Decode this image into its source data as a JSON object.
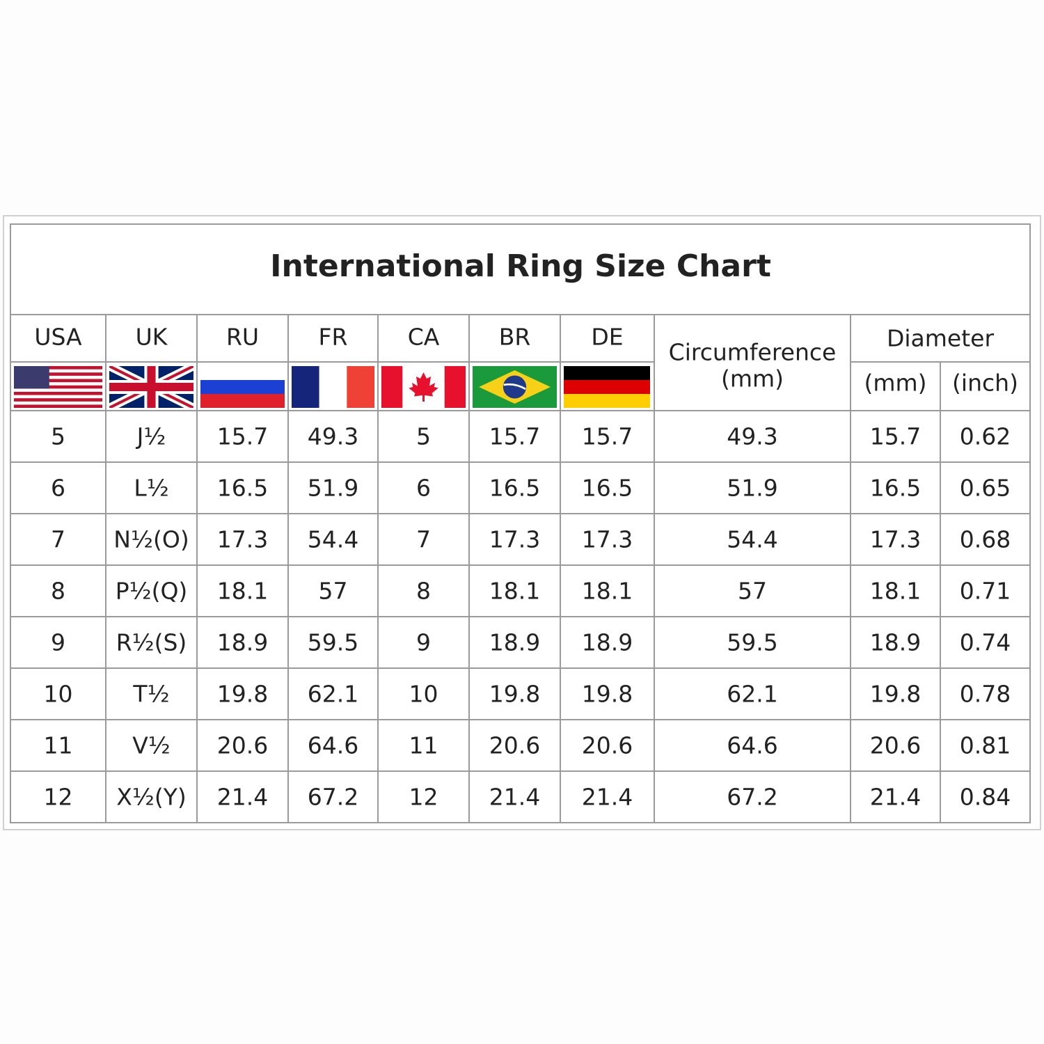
{
  "title": "International Ring Size Chart",
  "header": {
    "countries": [
      "USA",
      "UK",
      "RU",
      "FR",
      "CA",
      "BR",
      "DE"
    ],
    "circumference": {
      "label": "Circumference",
      "unit": "(mm)"
    },
    "diameter": {
      "label": "Diameter",
      "units": [
        "(mm)",
        "(inch)"
      ]
    }
  },
  "table": {
    "rows": [
      [
        "5",
        "J½",
        "15.7",
        "49.3",
        "5",
        "15.7",
        "15.7",
        "49.3",
        "15.7",
        "0.62"
      ],
      [
        "6",
        "L½",
        "16.5",
        "51.9",
        "6",
        "16.5",
        "16.5",
        "51.9",
        "16.5",
        "0.65"
      ],
      [
        "7",
        "N½(O)",
        "17.3",
        "54.4",
        "7",
        "17.3",
        "17.3",
        "54.4",
        "17.3",
        "0.68"
      ],
      [
        "8",
        "P½(Q)",
        "18.1",
        "57",
        "8",
        "18.1",
        "18.1",
        "57",
        "18.1",
        "0.71"
      ],
      [
        "9",
        "R½(S)",
        "18.9",
        "59.5",
        "9",
        "18.9",
        "18.9",
        "59.5",
        "18.9",
        "0.74"
      ],
      [
        "10",
        "T½",
        "19.8",
        "62.1",
        "10",
        "19.8",
        "19.8",
        "62.1",
        "19.8",
        "0.78"
      ],
      [
        "11",
        "V½",
        "20.6",
        "64.6",
        "11",
        "20.6",
        "20.6",
        "64.6",
        "20.6",
        "0.81"
      ],
      [
        "12",
        "X½(Y)",
        "21.4",
        "67.2",
        "12",
        "21.4",
        "21.4",
        "67.2",
        "21.4",
        "0.84"
      ]
    ]
  }
}
